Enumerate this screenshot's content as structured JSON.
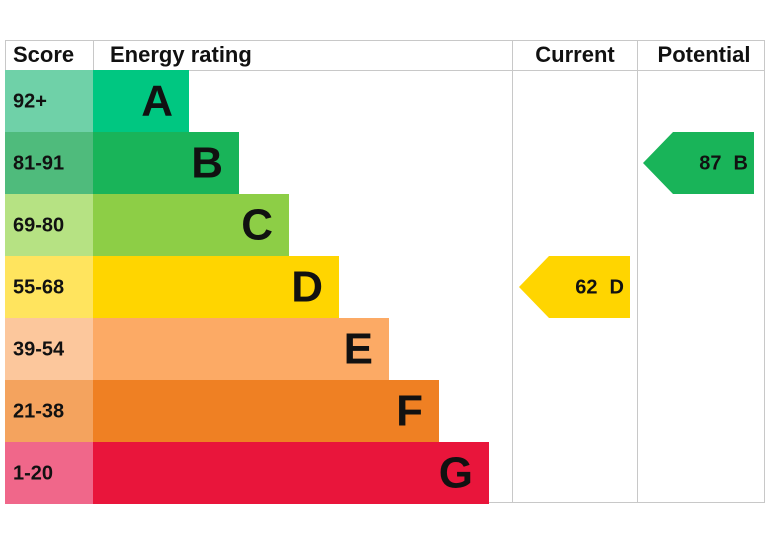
{
  "header": {
    "score": "Score",
    "rating": "Energy rating",
    "current": "Current",
    "potential": "Potential"
  },
  "rows": [
    {
      "score": "92+",
      "letter": "A"
    },
    {
      "score": "81-91",
      "letter": "B"
    },
    {
      "score": "69-80",
      "letter": "C"
    },
    {
      "score": "55-68",
      "letter": "D"
    },
    {
      "score": "39-54",
      "letter": "E"
    },
    {
      "score": "21-38",
      "letter": "F"
    },
    {
      "score": "1-20",
      "letter": "G"
    }
  ],
  "current": {
    "value": 62,
    "band": "D"
  },
  "potential": {
    "value": 87,
    "band": "B"
  }
}
